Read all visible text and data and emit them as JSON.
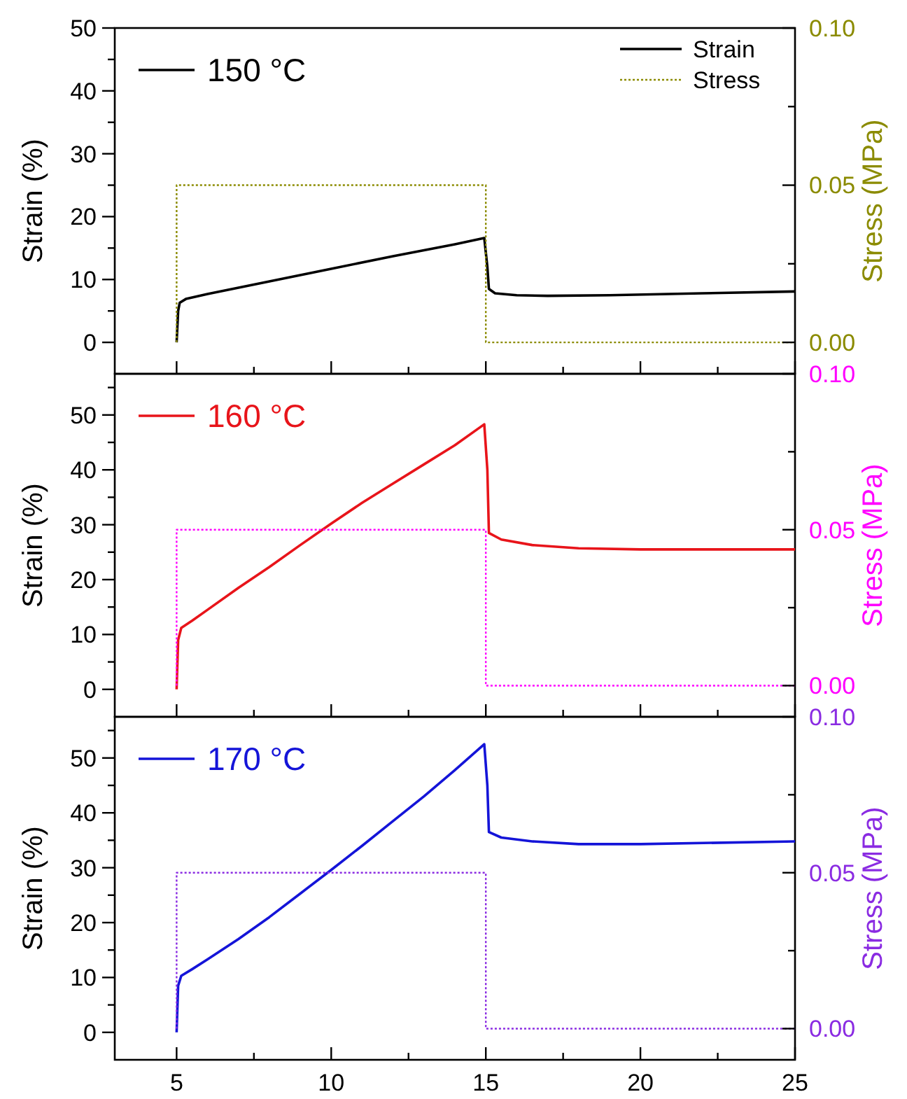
{
  "chart_data": [
    {
      "type": "line",
      "title": "150 °C",
      "ylabel": "Strain (%)",
      "y2label": "Stress (MPa)",
      "xlim": [
        3,
        25
      ],
      "xticks": [
        {
          "value": 5,
          "label": null
        },
        {
          "value": 7.5,
          "label": null
        },
        {
          "value": 10,
          "label": null
        },
        {
          "value": 12.5,
          "label": null
        },
        {
          "value": 15,
          "label": null
        },
        {
          "value": 17.5,
          "label": null
        },
        {
          "value": 20,
          "label": null
        },
        {
          "value": 22.5,
          "label": null
        },
        {
          "value": 25,
          "label": null
        }
      ],
      "ylim": [
        -5,
        50
      ],
      "yticks": [
        0,
        {
          "value": 5,
          "label": null
        },
        10,
        {
          "value": 15,
          "label": null
        },
        20,
        {
          "value": 25,
          "label": null
        },
        30,
        {
          "value": 35,
          "label": null
        },
        40,
        {
          "value": 45,
          "label": null
        },
        50
      ],
      "y2lim": [
        -0.01,
        0.1
      ],
      "y2ticks": [
        {
          "value": 0,
          "label": "0.00"
        },
        {
          "value": 0.025,
          "label": null
        },
        {
          "value": 0.05,
          "label": "0.05"
        },
        {
          "value": 0.075,
          "label": null
        },
        {
          "value": 0.1,
          "label": "0.10"
        }
      ],
      "tick_labels": "y",
      "legend": "top right",
      "series": [
        {
          "name": "Strain",
          "color": "#000000",
          "line_style": "solid",
          "x": [
            5,
            5.05,
            5.1,
            5.3,
            6,
            8,
            10,
            12,
            14,
            14.95,
            15.05,
            15.1,
            15.3,
            16,
            17,
            19,
            22,
            25
          ],
          "values": [
            0,
            5,
            6.3,
            6.9,
            7.7,
            9.7,
            11.7,
            13.7,
            15.6,
            16.6,
            12,
            8.5,
            7.8,
            7.5,
            7.4,
            7.5,
            7.8,
            8.1
          ]
        },
        {
          "name": "Stress",
          "color": "#8b8b00",
          "line_style": "dotted",
          "axis": "y2",
          "x": [
            5,
            5,
            15,
            15,
            25
          ],
          "values": [
            0,
            0.05,
            0.05,
            0,
            0
          ]
        }
      ]
    },
    {
      "type": "line",
      "title": "160 °C",
      "ylabel": "Strain (%)",
      "y2label": "Stress (MPa)",
      "xlim": [
        3,
        25
      ],
      "xticks": [
        {
          "value": 5,
          "label": null
        },
        {
          "value": 7.5,
          "label": null
        },
        {
          "value": 10,
          "label": null
        },
        {
          "value": 12.5,
          "label": null
        },
        {
          "value": 15,
          "label": null
        },
        {
          "value": 17.5,
          "label": null
        },
        {
          "value": 20,
          "label": null
        },
        {
          "value": 22.5,
          "label": null
        },
        {
          "value": 25,
          "label": null
        }
      ],
      "ylim": [
        -5,
        57.5
      ],
      "yticks": [
        0,
        {
          "value": 5,
          "label": null
        },
        10,
        {
          "value": 15,
          "label": null
        },
        20,
        {
          "value": 25,
          "label": null
        },
        30,
        {
          "value": 35,
          "label": null
        },
        40,
        {
          "value": 45,
          "label": null
        },
        50,
        {
          "value": 55,
          "label": null
        }
      ],
      "y2lim": [
        -0.01,
        0.1
      ],
      "y2ticks": [
        {
          "value": 0,
          "label": "0.00"
        },
        {
          "value": 0.025,
          "label": null
        },
        {
          "value": 0.05,
          "label": "0.05"
        },
        {
          "value": 0.075,
          "label": null
        },
        {
          "value": 0.1,
          "label": "0.10"
        }
      ],
      "tick_labels": "y",
      "legend": false,
      "series": [
        {
          "color": "#e8141a",
          "line_style": "solid",
          "x": [
            5,
            5.05,
            5.15,
            5.5,
            6,
            7,
            8,
            9,
            10,
            11,
            12,
            13,
            14,
            14.95,
            15.05,
            15.1,
            15.5,
            16.5,
            18,
            20,
            25
          ],
          "values": [
            0,
            9,
            11.2,
            12.5,
            14.5,
            18.5,
            22.3,
            26.3,
            30.2,
            34,
            37.5,
            41,
            44.5,
            48.3,
            40,
            28.5,
            27.3,
            26.3,
            25.7,
            25.5,
            25.5
          ]
        },
        {
          "color": "#ff00ff",
          "line_style": "dotted",
          "axis": "y2",
          "x": [
            5,
            5,
            15,
            15,
            25
          ],
          "values": [
            0,
            0.05,
            0.05,
            0,
            0
          ]
        }
      ]
    },
    {
      "type": "line",
      "title": "170 °C",
      "ylabel": "Strain (%)",
      "y2label": "Stress (MPa)",
      "xlim": [
        3,
        25
      ],
      "xticks": [
        5,
        {
          "value": 7.5,
          "label": null
        },
        10,
        {
          "value": 12.5,
          "label": null
        },
        15,
        {
          "value": 17.5,
          "label": null
        },
        20,
        {
          "value": 22.5,
          "label": null
        },
        25
      ],
      "ylim": [
        -5,
        57.5
      ],
      "yticks": [
        0,
        {
          "value": 5,
          "label": null
        },
        10,
        {
          "value": 15,
          "label": null
        },
        20,
        {
          "value": 25,
          "label": null
        },
        30,
        {
          "value": 35,
          "label": null
        },
        40,
        {
          "value": 45,
          "label": null
        },
        50,
        {
          "value": 55,
          "label": null
        }
      ],
      "y2lim": [
        -0.01,
        0.1
      ],
      "y2ticks": [
        {
          "value": 0,
          "label": "0.00"
        },
        {
          "value": 0.025,
          "label": null
        },
        {
          "value": 0.05,
          "label": "0.05"
        },
        {
          "value": 0.075,
          "label": null
        },
        {
          "value": 0.1,
          "label": "0.10"
        }
      ],
      "legend": false,
      "series": [
        {
          "color": "#1414d8",
          "line_style": "solid",
          "x": [
            5,
            5.05,
            5.15,
            5.5,
            6,
            7,
            8,
            9,
            10,
            11,
            12,
            13,
            14,
            14.95,
            15.05,
            15.1,
            15.5,
            16.5,
            18,
            20,
            25
          ],
          "values": [
            0,
            8.5,
            10.3,
            11.5,
            13.3,
            17,
            21,
            25.3,
            29.6,
            34,
            38.5,
            43,
            47.8,
            52.5,
            45,
            36.5,
            35.5,
            34.8,
            34.3,
            34.3,
            34.8
          ]
        },
        {
          "color": "#8a2be2",
          "line_style": "dotted",
          "axis": "y2",
          "x": [
            5,
            5,
            15,
            15,
            25
          ],
          "values": [
            0,
            0.05,
            0.05,
            0,
            0
          ]
        }
      ]
    }
  ]
}
